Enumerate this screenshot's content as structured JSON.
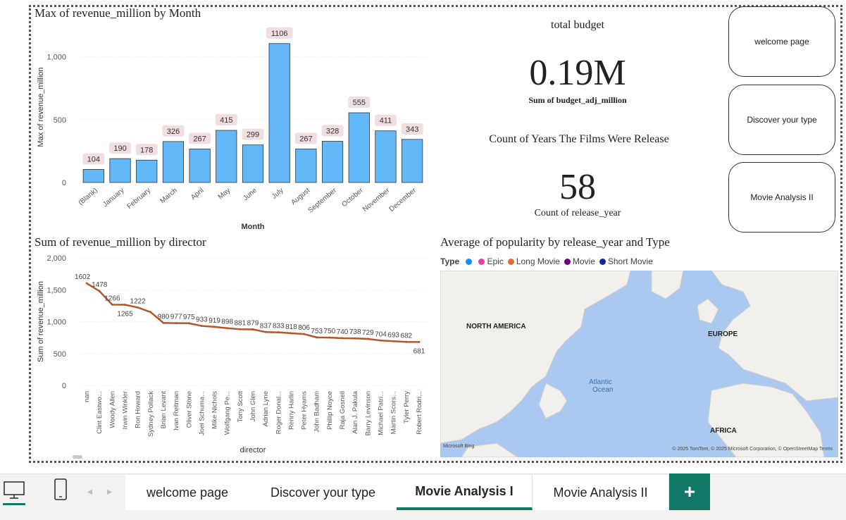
{
  "bar_chart": {
    "title": "Max of revenue_million by Month",
    "xlabel": "Month",
    "ylabel": "Max of revenue_million",
    "yticks": [
      "1,000",
      "500",
      "0"
    ]
  },
  "line_chart": {
    "title": "Sum of revenue_million by director",
    "xlabel": "director",
    "ylabel": "Sum of revenue_million",
    "yticks": [
      "2,000",
      "1,500",
      "1,000",
      "500",
      "0"
    ]
  },
  "chart_data": [
    {
      "type": "bar",
      "title": "Max of revenue_million by Month",
      "xlabel": "Month",
      "ylabel": "Max of revenue_million",
      "categories": [
        "(Blank)",
        "January",
        "February",
        "March",
        "April",
        "May",
        "June",
        "July",
        "August",
        "September",
        "October",
        "November",
        "December"
      ],
      "values": [
        104,
        190,
        178,
        326,
        267,
        415,
        299,
        1106,
        267,
        328,
        555,
        411,
        343
      ],
      "ylim": [
        0,
        1200
      ],
      "color": "#63b8f8"
    },
    {
      "type": "line",
      "title": "Sum of revenue_million by director",
      "xlabel": "director",
      "ylabel": "Sum of revenue_million",
      "categories": [
        "nan",
        "Clint Eastwo...",
        "Woody Allen",
        "Irwin Winkler",
        "Ron Howard",
        "Sydney Pollack",
        "Brian Levant",
        "Ivan Reitman",
        "Oliver Stone",
        "Joel Schuma...",
        "Mike Nichols",
        "Wolfgang Pe...",
        "Tony Scott",
        "John Glen",
        "Adrian Lyne",
        "Roger Donal...",
        "Renny Harlin",
        "Peter Hyams",
        "John Badham",
        "Phillip Noyce",
        "Raja Gosnell",
        "Alan J. Pakula",
        "Barry Levinson",
        "Michael Patri...",
        "Martin Scors...",
        "Tyler Perry",
        "Robert Rodri..."
      ],
      "values": [
        1602,
        1478,
        1266,
        1265,
        1222,
        1150,
        980,
        977,
        975,
        933,
        919,
        898,
        881,
        879,
        837,
        833,
        818,
        806,
        753,
        750,
        740,
        738,
        729,
        704,
        693,
        682,
        681
      ],
      "labels": [
        "1602",
        "1478",
        "1266",
        "1265",
        "1222",
        "",
        "980",
        "977",
        "975",
        "933",
        "919",
        "898",
        "881",
        "879",
        "837",
        "833",
        "818",
        "806",
        "753",
        "750",
        "740",
        "738",
        "729",
        "704",
        "693",
        "682",
        "681"
      ],
      "ylim": [
        0,
        2000
      ],
      "color": "#b5562a"
    }
  ],
  "cards": {
    "budget_title": "total budget",
    "budget_value": "0.19M",
    "budget_label": "Sum of budget_adj_million",
    "years_title": "Count of Years The Films Were Release",
    "years_value": "58",
    "years_label": "Count of release_year"
  },
  "nav_buttons": {
    "welcome": "welcome page",
    "discover": "Discover your type",
    "analysis2": "Movie Analysis II"
  },
  "map": {
    "title": "Average of popularity by release_year and Type",
    "legend_title": "Type",
    "legend": [
      {
        "label": "",
        "color": "#118dff"
      },
      {
        "label": "Epic",
        "color": "#e044a7"
      },
      {
        "label": "Long Movie",
        "color": "#e66c37"
      },
      {
        "label": "Movie",
        "color": "#6b007b"
      },
      {
        "label": "Short Movie",
        "color": "#12239e"
      }
    ],
    "labels": {
      "north_america": "NORTH AMERICA",
      "europe": "EUROPE",
      "africa": "AFRICA",
      "ocean1": "Atlantic",
      "ocean2": "Ocean"
    },
    "attribution": "© 2025 TomTom, © 2025 Microsoft Corporation, © OpenStreetMap  Terms",
    "brand": "Microsoft Bing"
  },
  "tabs": {
    "items": [
      "welcome page",
      "Discover your type",
      "Movie Analysis I",
      "Movie Analysis II"
    ],
    "active": "Movie Analysis I",
    "add": "+"
  }
}
